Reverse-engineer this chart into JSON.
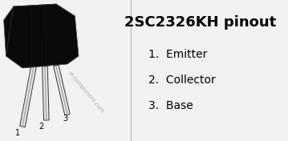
{
  "bg_color": "#f2f2f2",
  "title": "2SC2326KH pinout",
  "title_fontsize": 13,
  "title_bold": true,
  "pins": [
    {
      "num": "1",
      "label": "Emitter"
    },
    {
      "num": "2",
      "label": "Collector"
    },
    {
      "num": "3",
      "label": "Base"
    }
  ],
  "pin_fontsize": 10,
  "watermark": "el-component.com",
  "body_color": "#0a0a0a",
  "body_edge_color": "#444444",
  "lead_light": "#e8e8e8",
  "lead_dark": "#333333",
  "lead_mid": "#aaaaaa"
}
